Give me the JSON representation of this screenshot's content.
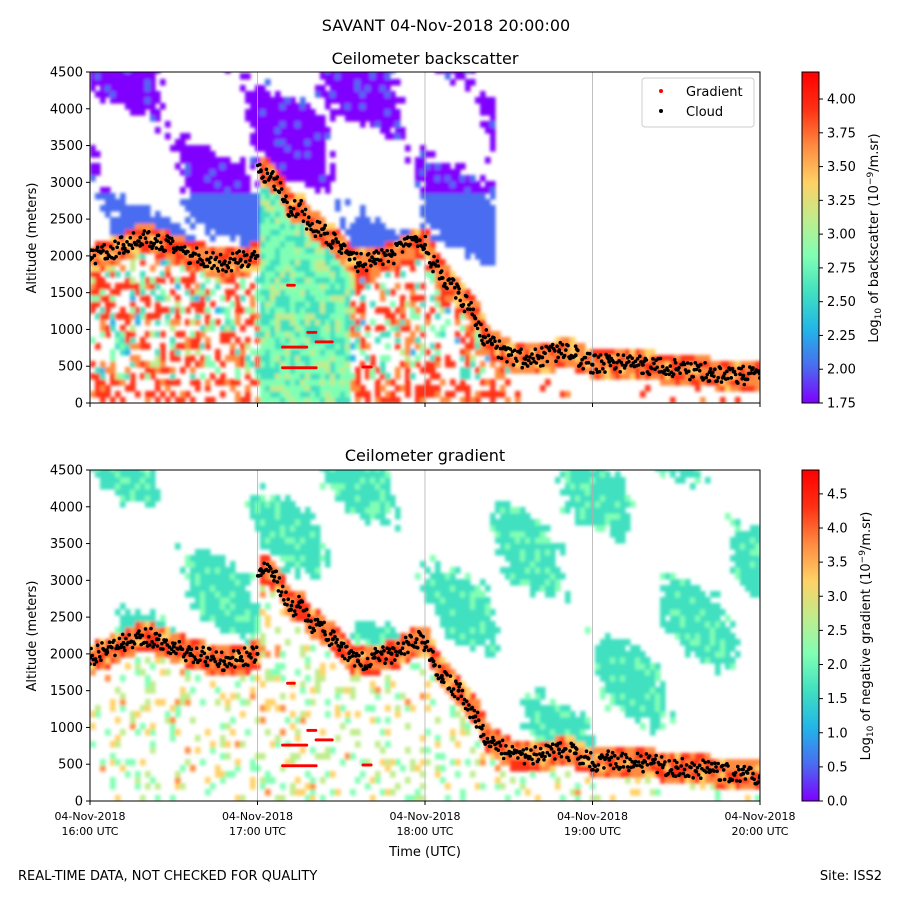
{
  "figure": {
    "suptitle": "SAVANT 04-Nov-2018 20:00:00",
    "footer_left": "REAL-TIME DATA, NOT CHECKED FOR QUALITY",
    "footer_right": "Site: ISS2"
  },
  "colors": {
    "cmap": [
      "#7f00ff",
      "#4a6cf0",
      "#22b5e8",
      "#40e0c0",
      "#80ffb4",
      "#c0ec8c",
      "#ffd166",
      "#ff8a40",
      "#ff3014",
      "#ff0000"
    ],
    "gradient_marker": "#ff0000",
    "cloud_marker": "#000000",
    "grid": "#b0b0b0"
  },
  "chart_data": [
    {
      "type": "heatmap",
      "title": "Ceilometer backscatter",
      "xlabel": "",
      "ylabel": "Altitude (meters)",
      "ylim": [
        0,
        4500
      ],
      "yticks": [
        0,
        500,
        1000,
        1500,
        2000,
        2500,
        3000,
        3500,
        4000,
        4500
      ],
      "x_hours": [
        16,
        17,
        18,
        19,
        20
      ],
      "grid": "vertical",
      "legend": {
        "position": "top-right",
        "entries": [
          {
            "label": "Gradient",
            "color": "#ff0000"
          },
          {
            "label": "Cloud",
            "color": "#000000"
          }
        ]
      },
      "colorbar": {
        "label": "Log10 of backscatter (10^-9/m.sr)",
        "label_parts": [
          "Log",
          "10",
          " of backscatter (10",
          "−9",
          "/m.sr)"
        ],
        "range": [
          1.75,
          4.2
        ],
        "ticks": [
          "1.75",
          "2.00",
          "2.25",
          "2.50",
          "2.75",
          "3.00",
          "3.25",
          "3.50",
          "3.75",
          "4.00"
        ],
        "tick_values": [
          1.75,
          2.0,
          2.25,
          2.5,
          2.75,
          3.0,
          3.25,
          3.5,
          3.75,
          4.0
        ]
      }
    },
    {
      "type": "heatmap",
      "title": "Ceilometer gradient",
      "xlabel": "Time (UTC)",
      "ylabel": "Altitude (meters)",
      "ylim": [
        0,
        4500
      ],
      "yticks": [
        0,
        500,
        1000,
        1500,
        2000,
        2500,
        3000,
        3500,
        4000,
        4500
      ],
      "x_hours": [
        16,
        17,
        18,
        19,
        20
      ],
      "x_tick_labels": [
        [
          "04-Nov-2018",
          "16:00 UTC"
        ],
        [
          "04-Nov-2018",
          "17:00 UTC"
        ],
        [
          "04-Nov-2018",
          "18:00 UTC"
        ],
        [
          "04-Nov-2018",
          "19:00 UTC"
        ],
        [
          "04-Nov-2018",
          "20:00 UTC"
        ]
      ],
      "grid": "vertical",
      "colorbar": {
        "label": "Log10 of negative gradient (10^-9/m.sr)",
        "label_parts": [
          "Log",
          "10",
          " of negative gradient (10",
          "−9",
          "/m.sr)"
        ],
        "range": [
          0.0,
          4.85
        ],
        "ticks": [
          "0.0",
          "0.5",
          "1.0",
          "1.5",
          "2.0",
          "2.5",
          "3.0",
          "3.5",
          "4.0",
          "4.5"
        ],
        "tick_values": [
          0.0,
          0.5,
          1.0,
          1.5,
          2.0,
          2.5,
          3.0,
          3.5,
          4.0,
          4.5
        ]
      }
    }
  ],
  "series": {
    "cloud_base": {
      "name": "Cloud",
      "hours": [
        16.0,
        16.1,
        16.2,
        16.3,
        16.4,
        16.5,
        16.6,
        16.7,
        16.8,
        16.9,
        17.0,
        17.02,
        17.1,
        17.2,
        17.25,
        17.3,
        17.4,
        17.45,
        17.5,
        17.55,
        17.6,
        17.7,
        17.8,
        17.9,
        17.95,
        18.0,
        18.05,
        18.1,
        18.2,
        18.3,
        18.35,
        18.4,
        18.5,
        18.6,
        18.7,
        18.8,
        18.9,
        19.0,
        19.1,
        19.3,
        19.5,
        19.7,
        19.9,
        20.0
      ],
      "altitude_m": [
        1950,
        2050,
        2150,
        2250,
        2200,
        2100,
        2000,
        1950,
        1900,
        1950,
        2000,
        3150,
        3050,
        2600,
        2700,
        2450,
        2300,
        2200,
        2100,
        1950,
        1900,
        1950,
        2000,
        2150,
        2200,
        2150,
        1900,
        1700,
        1500,
        1150,
        900,
        800,
        650,
        600,
        620,
        700,
        650,
        520,
        560,
        520,
        460,
        420,
        370,
        340
      ]
    },
    "gradient_levels": {
      "name": "Gradient",
      "segments": [
        {
          "start_hour": 17.15,
          "end_hour": 17.35,
          "altitude_m": 480
        },
        {
          "start_hour": 17.15,
          "end_hour": 17.3,
          "altitude_m": 760
        },
        {
          "start_hour": 17.35,
          "end_hour": 17.45,
          "altitude_m": 830
        },
        {
          "start_hour": 17.3,
          "end_hour": 17.35,
          "altitude_m": 960
        },
        {
          "start_hour": 17.18,
          "end_hour": 17.22,
          "altitude_m": 1600
        },
        {
          "start_hour": 17.63,
          "end_hour": 17.68,
          "altitude_m": 490
        }
      ]
    }
  }
}
